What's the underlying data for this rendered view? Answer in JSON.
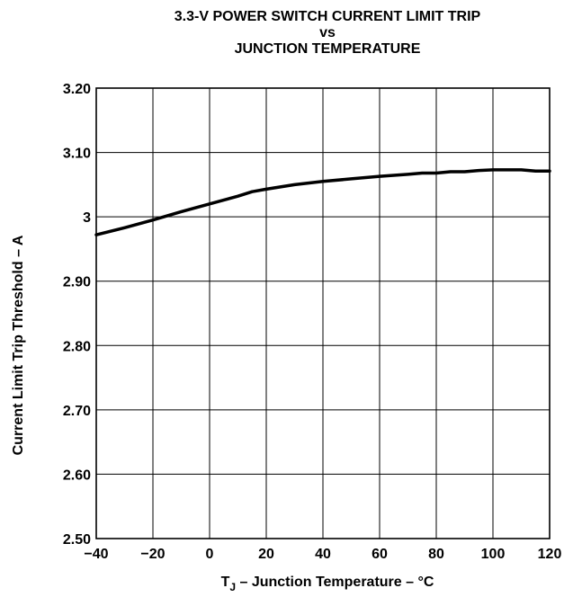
{
  "chart_data": {
    "type": "line",
    "title": [
      "3.3-V POWER SWITCH CURRENT LIMIT TRIP",
      "vs",
      "JUNCTION TEMPERATURE"
    ],
    "xlabel": {
      "prefix": "T",
      "subscript": "J",
      "suffix": " – Junction Temperature – °C"
    },
    "ylabel": "Current Limit Trip Threshold – A",
    "xlim": [
      -40,
      120
    ],
    "ylim": [
      2.5,
      3.2
    ],
    "x_ticks": [
      -40,
      -20,
      0,
      20,
      40,
      60,
      80,
      100,
      120
    ],
    "x_tick_labels": [
      "−40",
      "−20",
      "0",
      "20",
      "40",
      "60",
      "80",
      "100",
      "120"
    ],
    "y_ticks": [
      2.5,
      2.6,
      2.7,
      2.8,
      2.9,
      3.0,
      3.1,
      3.2
    ],
    "y_tick_labels": [
      "2.50",
      "2.60",
      "2.70",
      "2.80",
      "2.90",
      "3",
      "3.10",
      "3.20"
    ],
    "grid": true,
    "series": [
      {
        "x": [
          -40,
          -30,
          -20,
          -10,
          0,
          10,
          15,
          20,
          30,
          40,
          50,
          55,
          60,
          70,
          75,
          80,
          85,
          90,
          95,
          100,
          110,
          115,
          120
        ],
        "y": [
          2.972,
          2.983,
          2.995,
          3.008,
          3.02,
          3.032,
          3.039,
          3.043,
          3.05,
          3.055,
          3.059,
          3.061,
          3.063,
          3.066,
          3.068,
          3.068,
          3.07,
          3.07,
          3.072,
          3.073,
          3.073,
          3.071,
          3.071
        ]
      }
    ]
  }
}
